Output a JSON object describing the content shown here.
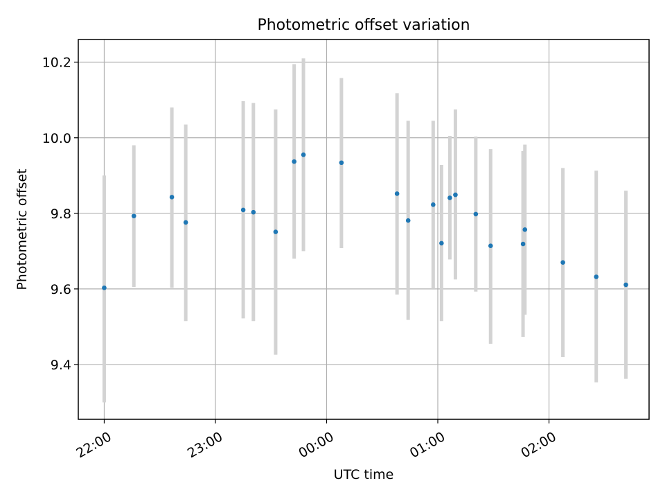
{
  "chart_data": {
    "type": "scatter",
    "title": "Photometric offset variation",
    "xlabel": "UTC time",
    "ylabel": "Photometric offset",
    "x_tick_labels": [
      "22:00",
      "23:00",
      "00:00",
      "01:00",
      "02:00"
    ],
    "x_tick_minutes": [
      0,
      60,
      120,
      180,
      240
    ],
    "y_ticks": [
      9.4,
      9.6,
      9.8,
      10.0,
      10.2
    ],
    "y_tick_labels": [
      "9.4",
      "9.6",
      "9.8",
      "10.0",
      "10.2"
    ],
    "xlim_minutes": [
      -14,
      294
    ],
    "ylim": [
      9.255,
      10.26
    ],
    "grid": true,
    "marker_color": "#1f77b4",
    "errorbar_color": "#d3d3d3",
    "points": [
      {
        "t": 0,
        "y": 9.603,
        "lo": 9.3,
        "hi": 9.9
      },
      {
        "t": 16,
        "y": 9.793,
        "lo": 9.605,
        "hi": 9.98
      },
      {
        "t": 36.5,
        "y": 9.843,
        "lo": 9.603,
        "hi": 10.08
      },
      {
        "t": 44,
        "y": 9.776,
        "lo": 9.515,
        "hi": 10.035
      },
      {
        "t": 75,
        "y": 9.809,
        "lo": 9.522,
        "hi": 10.097
      },
      {
        "t": 80.5,
        "y": 9.803,
        "lo": 9.515,
        "hi": 10.092
      },
      {
        "t": 92.5,
        "y": 9.751,
        "lo": 9.426,
        "hi": 10.075
      },
      {
        "t": 102.5,
        "y": 9.937,
        "lo": 9.68,
        "hi": 10.195
      },
      {
        "t": 107.5,
        "y": 9.955,
        "lo": 9.7,
        "hi": 10.21
      },
      {
        "t": 128,
        "y": 9.934,
        "lo": 9.708,
        "hi": 10.158
      },
      {
        "t": 158,
        "y": 9.852,
        "lo": 9.585,
        "hi": 10.118
      },
      {
        "t": 164,
        "y": 9.781,
        "lo": 9.518,
        "hi": 10.045
      },
      {
        "t": 177.5,
        "y": 9.823,
        "lo": 9.6,
        "hi": 10.045
      },
      {
        "t": 182,
        "y": 9.721,
        "lo": 9.515,
        "hi": 9.928
      },
      {
        "t": 186.5,
        "y": 9.841,
        "lo": 9.678,
        "hi": 10.005
      },
      {
        "t": 189.5,
        "y": 9.849,
        "lo": 9.625,
        "hi": 10.075
      },
      {
        "t": 200.5,
        "y": 9.798,
        "lo": 9.593,
        "hi": 10.003
      },
      {
        "t": 208.5,
        "y": 9.714,
        "lo": 9.455,
        "hi": 9.97
      },
      {
        "t": 226,
        "y": 9.719,
        "lo": 9.473,
        "hi": 9.965
      },
      {
        "t": 227,
        "y": 9.757,
        "lo": 9.532,
        "hi": 9.982
      },
      {
        "t": 247.5,
        "y": 9.67,
        "lo": 9.42,
        "hi": 9.92
      },
      {
        "t": 265.5,
        "y": 9.632,
        "lo": 9.353,
        "hi": 9.913
      },
      {
        "t": 281.5,
        "y": 9.611,
        "lo": 9.362,
        "hi": 9.86
      }
    ]
  }
}
